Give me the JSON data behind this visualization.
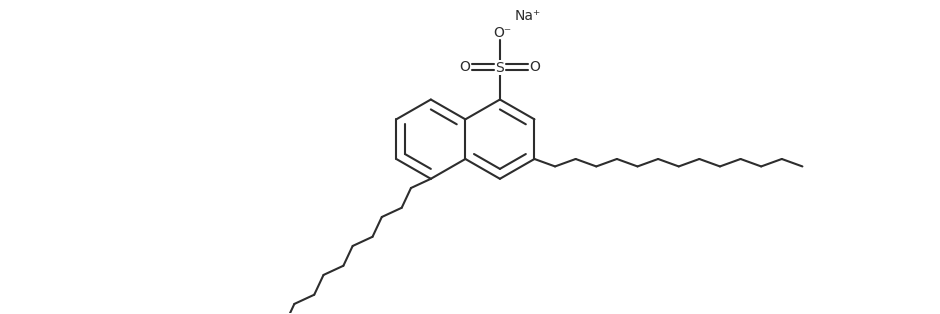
{
  "background_color": "#ffffff",
  "line_color": "#2d2d2d",
  "line_width": 1.5,
  "figsize": [
    9.4,
    3.14
  ],
  "dpi": 100,
  "na_text": "Na⁺",
  "o_minus_text": "O⁻",
  "s_text": "S",
  "o_text": "O"
}
